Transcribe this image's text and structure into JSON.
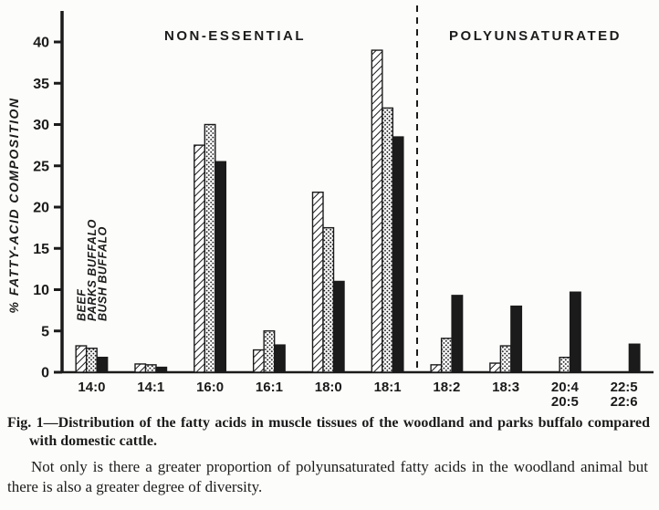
{
  "chart_data": {
    "type": "bar",
    "title": "",
    "xlabel": "",
    "ylabel": "% FATTY-ACID COMPOSITION",
    "ylim": [
      0,
      42
    ],
    "yticks": [
      0,
      5,
      10,
      15,
      20,
      25,
      30,
      35,
      40
    ],
    "grid": false,
    "section_labels": [
      "NON-ESSENTIAL",
      "POLYUNSATURATED"
    ],
    "section_split_index": 6,
    "separator_style": "dashed-vertical-line",
    "legend_position": "rotated labels above first bar group",
    "categories": [
      [
        "14:0"
      ],
      [
        "14:1"
      ],
      [
        "16:0"
      ],
      [
        "16:1"
      ],
      [
        "18:0"
      ],
      [
        "18:1"
      ],
      [
        "18:2"
      ],
      [
        "18:3"
      ],
      [
        "20:4",
        "20:5"
      ],
      [
        "22:5",
        "22:6"
      ]
    ],
    "series": [
      {
        "name": "BEEF",
        "pattern": "diagonal-hatch",
        "values": [
          3.2,
          1.0,
          27.5,
          2.7,
          21.8,
          39.0,
          0.9,
          1.1,
          0,
          0
        ]
      },
      {
        "name": "PARKS BUFFALO",
        "pattern": "stipple-dots",
        "values": [
          2.9,
          0.9,
          30.0,
          5.0,
          17.5,
          32.0,
          4.1,
          3.2,
          1.8,
          0
        ]
      },
      {
        "name": "BUSH BUFFALO",
        "pattern": "solid-black",
        "values": [
          1.8,
          0.6,
          25.5,
          3.3,
          11.0,
          28.5,
          9.3,
          8.0,
          9.7,
          3.4
        ]
      }
    ],
    "ink_color": "#1b1b1b",
    "paper_color": "#fcfcfa"
  },
  "caption": {
    "fig_label": "Fig. 1",
    "dash": "—",
    "text": "Distribution of the fatty acids in muscle tissues of the woodland and parks buffalo compared with domestic cattle."
  },
  "body_text": "Not only is there a greater proportion of polyunsaturated fatty acids in the woodland animal but there is also a greater degree of diversity."
}
